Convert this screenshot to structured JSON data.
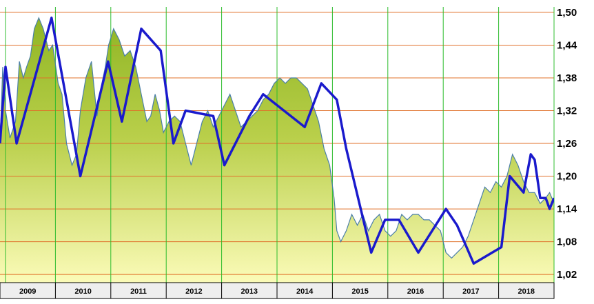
{
  "chart_data": {
    "type": "area",
    "title": "",
    "xlabel": "",
    "ylabel": "",
    "ylim": [
      1.005,
      1.51
    ],
    "y_ticks": [
      "1,02",
      "1,08",
      "1,14",
      "1,20",
      "1,26",
      "1,32",
      "1,38",
      "1,44",
      "1,50"
    ],
    "y_tick_values": [
      1.02,
      1.08,
      1.14,
      1.2,
      1.26,
      1.32,
      1.38,
      1.44,
      1.5
    ],
    "x_range": [
      2009.0,
      2019.0
    ],
    "x_tick_labels": [
      "2009",
      "2010",
      "2011",
      "2012",
      "2013",
      "2014",
      "2015",
      "2016",
      "2017",
      "2018"
    ],
    "grid": true,
    "legend": "none",
    "colors": {
      "trend_line": "#1a1acc",
      "price_line": "#4a7fa8",
      "area_top": "#9cbc2c",
      "area_bottom": "#fafab0",
      "h_grid": "#e0702a",
      "v_grid": "#2cbc2c",
      "axis_band": "#eeeeee"
    },
    "series": [
      {
        "role": "price",
        "x": [
          2009.0,
          2009.05,
          2009.1,
          2009.18,
          2009.28,
          2009.35,
          2009.42,
          2009.48,
          2009.55,
          2009.62,
          2009.7,
          2009.78,
          2009.88,
          2009.95,
          2010.05,
          2010.12,
          2010.2,
          2010.3,
          2010.38,
          2010.45,
          2010.55,
          2010.65,
          2010.75,
          2010.82,
          2010.9,
          2010.96,
          2011.05,
          2011.15,
          2011.25,
          2011.35,
          2011.45,
          2011.55,
          2011.65,
          2011.72,
          2011.8,
          2011.88,
          2011.95,
          2012.05,
          2012.15,
          2012.25,
          2012.35,
          2012.45,
          2012.55,
          2012.65,
          2012.75,
          2012.85,
          2012.95,
          2013.05,
          2013.15,
          2013.25,
          2013.35,
          2013.45,
          2013.55,
          2013.65,
          2013.75,
          2013.85,
          2013.95,
          2014.05,
          2014.15,
          2014.25,
          2014.35,
          2014.45,
          2014.55,
          2014.65,
          2014.75,
          2014.85,
          2014.95,
          2015.03,
          2015.08,
          2015.15,
          2015.25,
          2015.35,
          2015.45,
          2015.55,
          2015.65,
          2015.75,
          2015.85,
          2015.95,
          2016.05,
          2016.15,
          2016.25,
          2016.35,
          2016.45,
          2016.55,
          2016.65,
          2016.75,
          2016.85,
          2016.95,
          2017.05,
          2017.15,
          2017.25,
          2017.35,
          2017.45,
          2017.55,
          2017.65,
          2017.75,
          2017.85,
          2017.95,
          2018.05,
          2018.15,
          2018.25,
          2018.35,
          2018.45,
          2018.55,
          2018.65,
          2018.75,
          2018.85,
          2018.92,
          2019.0
        ],
        "y": [
          1.26,
          1.4,
          1.32,
          1.27,
          1.3,
          1.41,
          1.38,
          1.4,
          1.42,
          1.47,
          1.49,
          1.47,
          1.43,
          1.44,
          1.37,
          1.35,
          1.26,
          1.22,
          1.24,
          1.32,
          1.38,
          1.41,
          1.31,
          1.36,
          1.4,
          1.44,
          1.47,
          1.45,
          1.42,
          1.43,
          1.4,
          1.35,
          1.3,
          1.31,
          1.35,
          1.32,
          1.28,
          1.3,
          1.31,
          1.3,
          1.26,
          1.22,
          1.26,
          1.3,
          1.32,
          1.29,
          1.31,
          1.33,
          1.35,
          1.32,
          1.29,
          1.3,
          1.31,
          1.32,
          1.34,
          1.35,
          1.37,
          1.38,
          1.37,
          1.38,
          1.38,
          1.37,
          1.36,
          1.33,
          1.3,
          1.25,
          1.22,
          1.16,
          1.1,
          1.08,
          1.1,
          1.13,
          1.11,
          1.13,
          1.1,
          1.12,
          1.13,
          1.1,
          1.09,
          1.1,
          1.13,
          1.12,
          1.13,
          1.13,
          1.12,
          1.12,
          1.11,
          1.1,
          1.06,
          1.05,
          1.06,
          1.07,
          1.09,
          1.12,
          1.15,
          1.18,
          1.17,
          1.19,
          1.18,
          1.2,
          1.24,
          1.22,
          1.19,
          1.17,
          1.17,
          1.15,
          1.16,
          1.17,
          1.15
        ]
      },
      {
        "role": "trend",
        "x": [
          2009.0,
          2009.1,
          2009.3,
          2009.93,
          2010.45,
          2010.95,
          2011.2,
          2011.55,
          2011.9,
          2012.13,
          2012.35,
          2012.85,
          2013.05,
          2013.5,
          2013.75,
          2014.5,
          2014.8,
          2015.08,
          2015.25,
          2015.7,
          2015.95,
          2016.2,
          2016.55,
          2017.05,
          2017.25,
          2017.55,
          2018.05,
          2018.2,
          2018.45,
          2018.58,
          2018.65,
          2018.75,
          2018.85,
          2018.92,
          2019.0
        ],
        "y": [
          1.26,
          1.4,
          1.26,
          1.49,
          1.2,
          1.41,
          1.3,
          1.47,
          1.43,
          1.26,
          1.32,
          1.31,
          1.22,
          1.31,
          1.35,
          1.29,
          1.37,
          1.34,
          1.25,
          1.06,
          1.12,
          1.12,
          1.06,
          1.14,
          1.11,
          1.04,
          1.07,
          1.2,
          1.17,
          1.24,
          1.23,
          1.16,
          1.16,
          1.14,
          1.16
        ]
      }
    ]
  }
}
